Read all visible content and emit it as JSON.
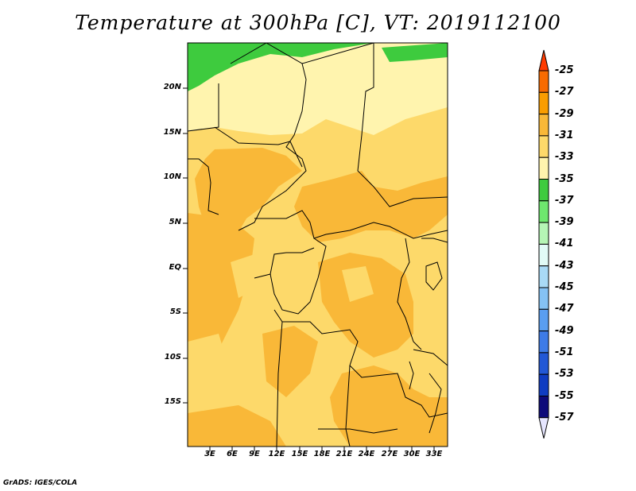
{
  "title": "Temperature at 300hPa [C], VT: 2019112100",
  "credit": "GrADS: IGES/COLA",
  "map": {
    "lat_labels": [
      "20N",
      "15N",
      "10N",
      "5N",
      "EQ",
      "5S",
      "10S",
      "15S"
    ],
    "lon_labels": [
      "3E",
      "6E",
      "9E",
      "12E",
      "15E",
      "18E",
      "21E",
      "24E",
      "27E",
      "30E",
      "33E"
    ]
  },
  "colorbar": {
    "labels": [
      "-25",
      "-27",
      "-29",
      "-31",
      "-33",
      "-35",
      "-37",
      "-39",
      "-41",
      "-43",
      "-45",
      "-47",
      "-49",
      "-51",
      "-53",
      "-55",
      "-57"
    ],
    "colors": [
      "#ff3b00",
      "#f86b00",
      "#fa9d00",
      "#f9b838",
      "#fdd96a",
      "#fff4ae",
      "#3ecb3e",
      "#6ee76e",
      "#b5f5b5",
      "#e2fbf7",
      "#a9daf6",
      "#85c2f4",
      "#5a9ef0",
      "#3d7be7",
      "#2258d6",
      "#0f3cc2",
      "#0d0a7a",
      "#e6e6ff"
    ]
  }
}
